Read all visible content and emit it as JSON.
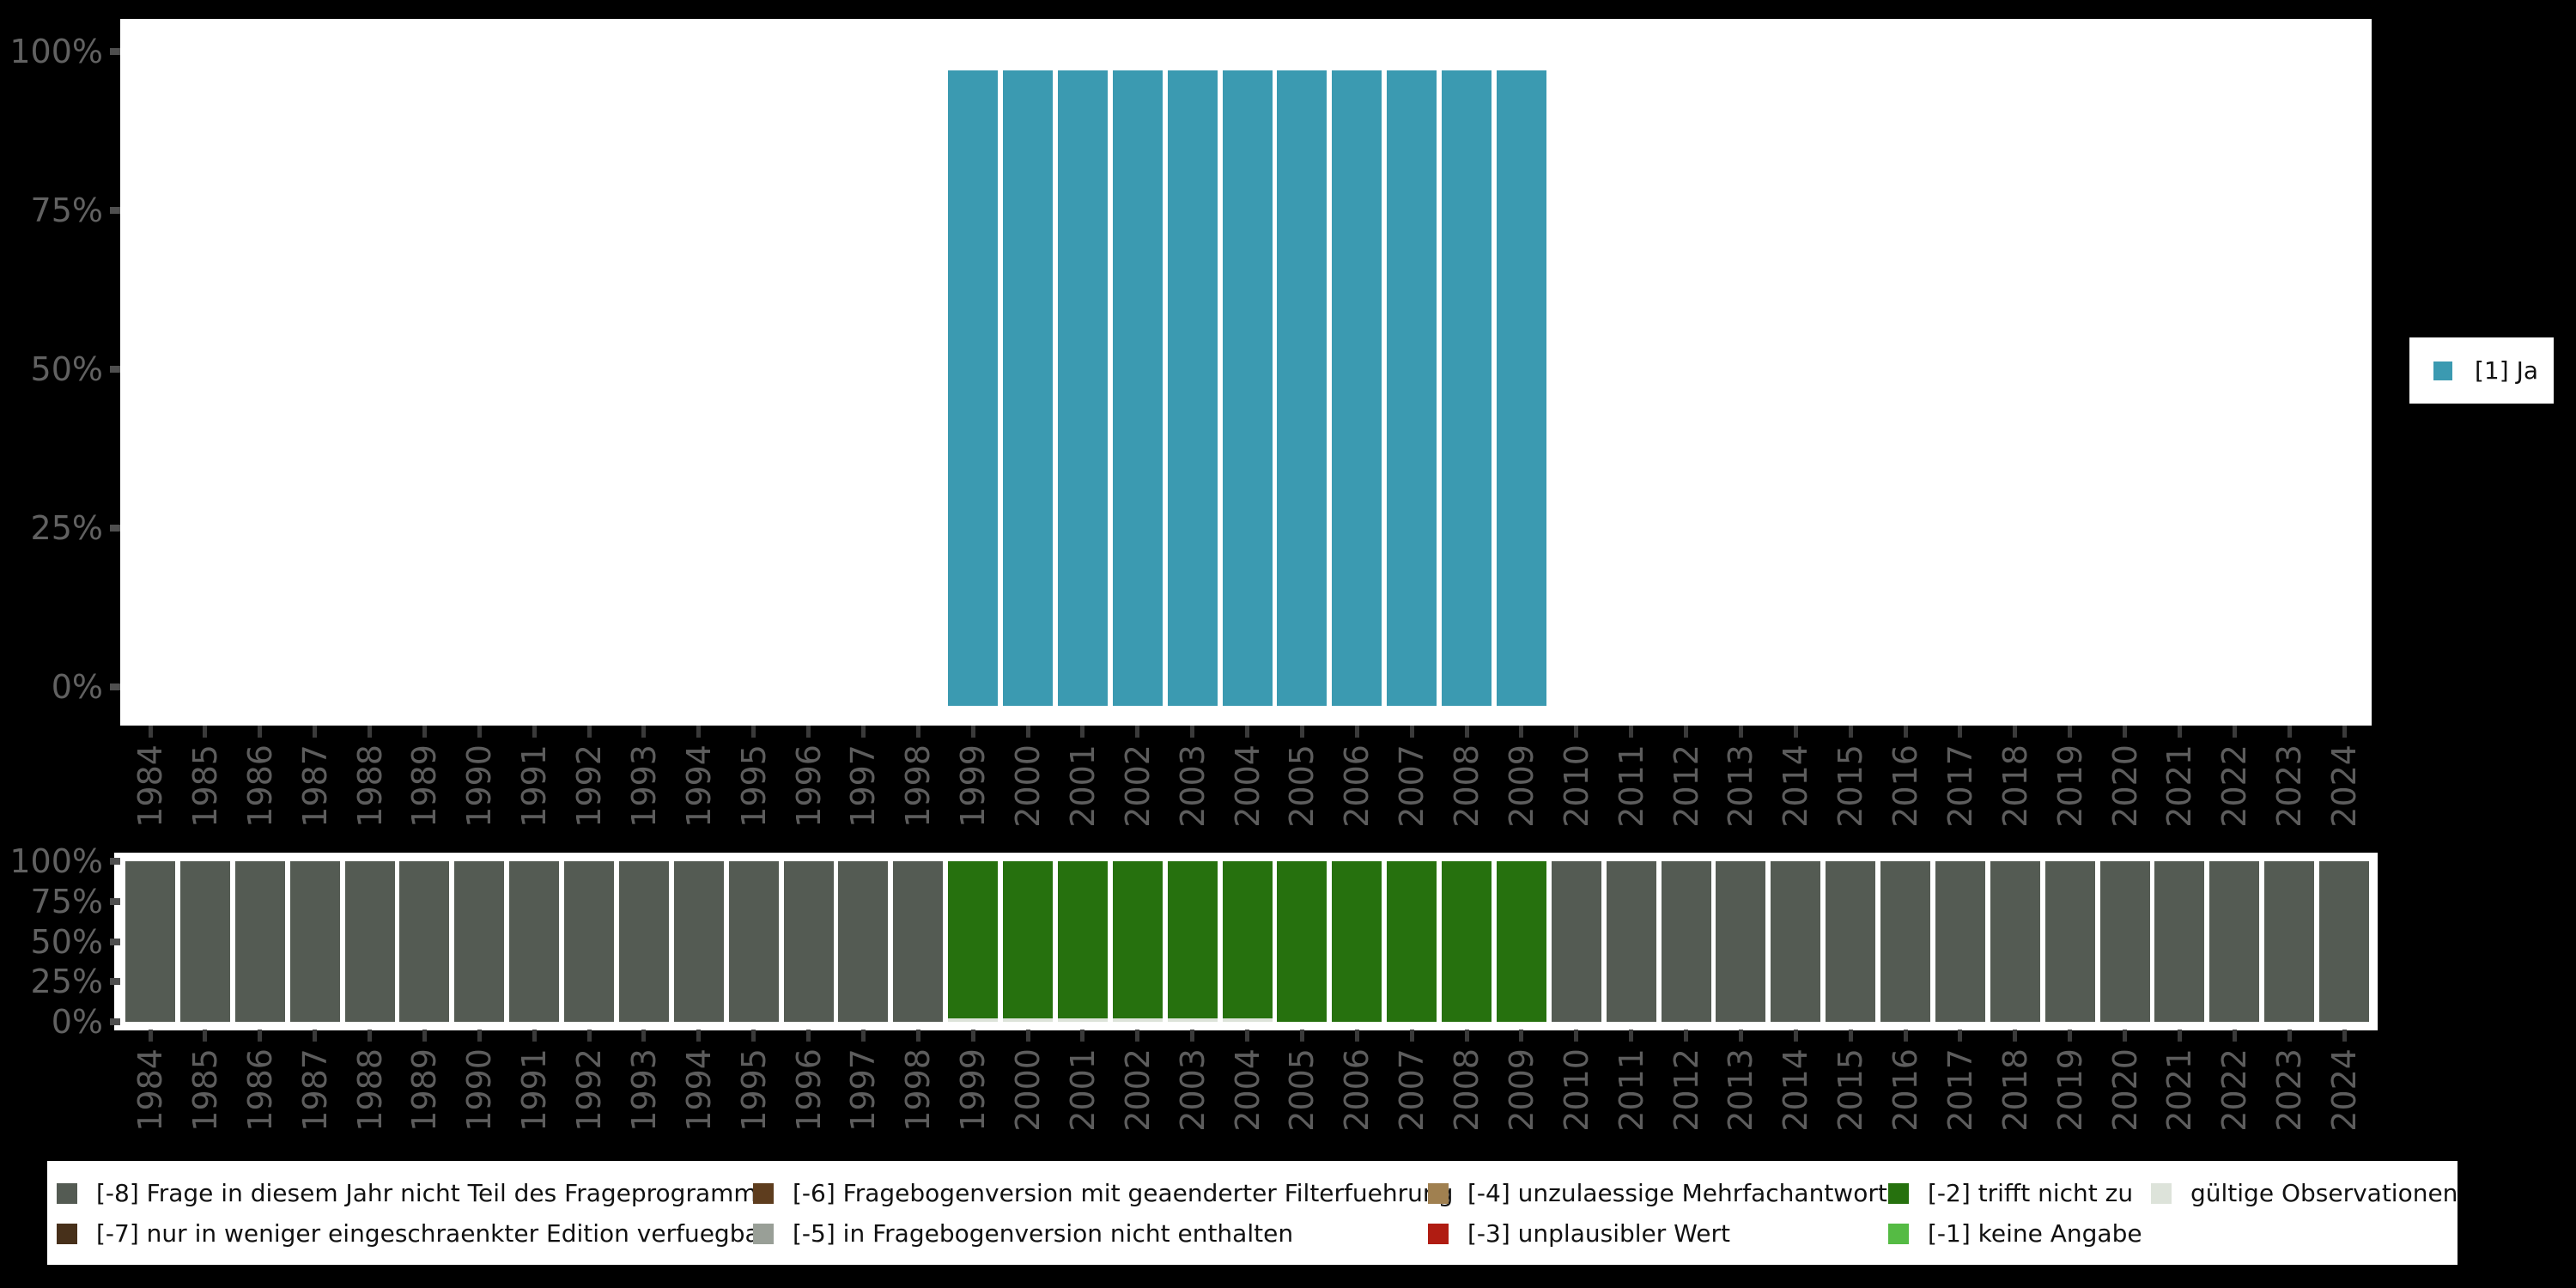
{
  "axis": {
    "y_tick_labels": [
      "100%",
      "75%",
      "50%",
      "25%",
      "0%"
    ],
    "years": [
      "1984",
      "1985",
      "1986",
      "1987",
      "1988",
      "1989",
      "1990",
      "1991",
      "1992",
      "1993",
      "1994",
      "1995",
      "1996",
      "1997",
      "1998",
      "1999",
      "2000",
      "2001",
      "2002",
      "2003",
      "2004",
      "2005",
      "2006",
      "2007",
      "2008",
      "2009",
      "2010",
      "2011",
      "2012",
      "2013",
      "2014",
      "2015",
      "2016",
      "2017",
      "2018",
      "2019",
      "2020",
      "2021",
      "2022",
      "2023",
      "2024"
    ]
  },
  "series_legend": {
    "label": "[1] Ja",
    "color": "#3b9ab1"
  },
  "missing_legend": {
    "columns": [
      [
        {
          "label": "[-8] Frage in diesem Jahr nicht Teil des Frageprogramms",
          "color": "#545b53"
        },
        {
          "label": "[-7] nur in weniger eingeschraenkter Edition verfuegbar",
          "color": "#47301a"
        }
      ],
      [
        {
          "label": "[-6] Fragebogenversion mit geaenderter Filterfuehrung",
          "color": "#5e3d1e"
        },
        {
          "label": "[-5] in Fragebogenversion nicht enthalten",
          "color": "#999f97"
        }
      ],
      [
        {
          "label": "[-4] unzulaessige Mehrfachantwort",
          "color": "#a08050"
        },
        {
          "label": "[-3] unplausibler Wert",
          "color": "#b01c12"
        }
      ],
      [
        {
          "label": "[-2] trifft nicht zu",
          "color": "#26710e"
        },
        {
          "label": "[-1] keine Angabe",
          "color": "#55bb44"
        }
      ],
      [
        {
          "label": "gültige Observationen",
          "color": "#dde3da"
        }
      ]
    ]
  },
  "chart_data": [
    {
      "type": "bar",
      "title": "",
      "xlabel": "",
      "ylabel": "",
      "ylim": [
        0,
        100
      ],
      "yticks": [
        "0%",
        "25%",
        "50%",
        "75%",
        "100%"
      ],
      "grid": false,
      "legend_position": "right",
      "categories": [
        "1984",
        "1985",
        "1986",
        "1987",
        "1988",
        "1989",
        "1990",
        "1991",
        "1992",
        "1993",
        "1994",
        "1995",
        "1996",
        "1997",
        "1998",
        "1999",
        "2000",
        "2001",
        "2002",
        "2003",
        "2004",
        "2005",
        "2006",
        "2007",
        "2008",
        "2009",
        "2010",
        "2011",
        "2012",
        "2013",
        "2014",
        "2015",
        "2016",
        "2017",
        "2018",
        "2019",
        "2020",
        "2021",
        "2022",
        "2023",
        "2024"
      ],
      "series": [
        {
          "name": "[1] Ja",
          "color": "#3b9ab1",
          "values": [
            0,
            0,
            0,
            0,
            0,
            0,
            0,
            0,
            0,
            0,
            0,
            0,
            0,
            0,
            0,
            100,
            100,
            100,
            100,
            100,
            100,
            100,
            100,
            100,
            100,
            100,
            0,
            0,
            0,
            0,
            0,
            0,
            0,
            0,
            0,
            0,
            0,
            0,
            0,
            0,
            0
          ]
        }
      ]
    },
    {
      "type": "bar",
      "stacked": true,
      "title": "",
      "xlabel": "",
      "ylabel": "",
      "ylim": [
        0,
        100
      ],
      "yticks": [
        "0%",
        "25%",
        "50%",
        "75%",
        "100%"
      ],
      "grid": false,
      "legend_position": "bottom",
      "categories": [
        "1984",
        "1985",
        "1986",
        "1987",
        "1988",
        "1989",
        "1990",
        "1991",
        "1992",
        "1993",
        "1994",
        "1995",
        "1996",
        "1997",
        "1998",
        "1999",
        "2000",
        "2001",
        "2002",
        "2003",
        "2004",
        "2005",
        "2006",
        "2007",
        "2008",
        "2009",
        "2010",
        "2011",
        "2012",
        "2013",
        "2014",
        "2015",
        "2016",
        "2017",
        "2018",
        "2019",
        "2020",
        "2021",
        "2022",
        "2023",
        "2024"
      ],
      "series": [
        {
          "name": "[-8] Frage in diesem Jahr nicht Teil des Frageprogramms",
          "color": "#545b53",
          "values": [
            100,
            100,
            100,
            100,
            100,
            100,
            100,
            100,
            100,
            100,
            100,
            100,
            100,
            100,
            100,
            0,
            0,
            0,
            0,
            0,
            0,
            0,
            0,
            0,
            0,
            0,
            100,
            100,
            100,
            100,
            100,
            100,
            100,
            100,
            100,
            100,
            100,
            100,
            100,
            100,
            100
          ]
        },
        {
          "name": "[-2] trifft nicht zu",
          "color": "#26710e",
          "values": [
            0,
            0,
            0,
            0,
            0,
            0,
            0,
            0,
            0,
            0,
            0,
            0,
            0,
            0,
            0,
            98,
            98,
            98,
            98,
            98,
            98,
            100,
            100,
            100,
            100,
            100,
            0,
            0,
            0,
            0,
            0,
            0,
            0,
            0,
            0,
            0,
            0,
            0,
            0,
            0,
            0
          ]
        },
        {
          "name": "gültige Observationen",
          "color": "#dde3da",
          "values": [
            0,
            0,
            0,
            0,
            0,
            0,
            0,
            0,
            0,
            0,
            0,
            0,
            0,
            0,
            0,
            2,
            2,
            2,
            2,
            2,
            2,
            0,
            0,
            0,
            0,
            0,
            0,
            0,
            0,
            0,
            0,
            0,
            0,
            0,
            0,
            0,
            0,
            0,
            0,
            0,
            0
          ]
        }
      ]
    }
  ]
}
